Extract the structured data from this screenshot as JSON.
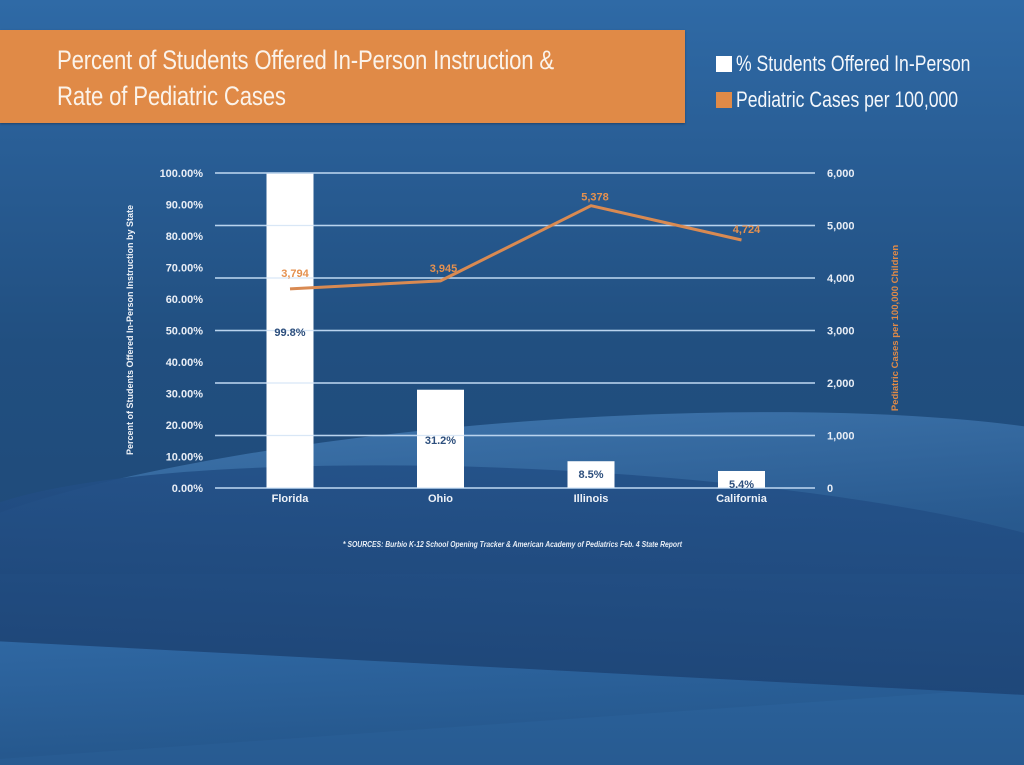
{
  "slide": {
    "title_lines": [
      "Percent of Students Offered In-Person Instruction &",
      "Rate of Pediatric Cases"
    ],
    "legend": [
      {
        "label": "% Students Offered In-Person",
        "color": "#ffffff"
      },
      {
        "label": "Pediatric Cases per 100,000",
        "color": "#e08a47"
      }
    ],
    "footnote": "* SOURCES: Burbio K-12 School Opening Tracker & American Academy of Pediatrics Feb. 4 State Report",
    "colors": {
      "accent_orange": "#e08a47",
      "bar_fill": "#ffffff",
      "bar_label": "#2d4f7d",
      "gridline": "#b9d3ee",
      "background": "#275a90"
    }
  },
  "chart_data": {
    "type": "bar+line",
    "title": "Percent of Students Offered In-Person Instruction & Rate of Pediatric Cases",
    "categories": [
      "Florida",
      "Ohio",
      "Illinois",
      "California"
    ],
    "series": [
      {
        "name": "% Students Offered In-Person",
        "type": "bar",
        "axis": "left",
        "values": [
          99.8,
          31.2,
          8.5,
          5.4
        ],
        "labels": [
          "99.8%",
          "31.2%",
          "8.5%",
          "5.4%"
        ]
      },
      {
        "name": "Pediatric Cases per 100,000",
        "type": "line",
        "axis": "right",
        "values": [
          3794,
          3945,
          5378,
          4724
        ],
        "labels": [
          "3,794",
          "3,945",
          "5,378",
          "4,724"
        ]
      }
    ],
    "ylabel": "Percent of Students Offered In-Person Instruction by State",
    "ylabel_right": "Pediatric Cases per 100,000 Children",
    "xlabel": "",
    "ylim": [
      0,
      100
    ],
    "ylim_right": [
      0,
      6000
    ],
    "left_ticks": [
      "0.00%",
      "10.00%",
      "20.00%",
      "30.00%",
      "40.00%",
      "50.00%",
      "60.00%",
      "70.00%",
      "80.00%",
      "90.00%",
      "100.00%"
    ],
    "left_tick_values": [
      0,
      10,
      20,
      30,
      40,
      50,
      60,
      70,
      80,
      90,
      100
    ],
    "right_ticks": [
      "0",
      "1,000",
      "2,000",
      "3,000",
      "4,000",
      "5,000",
      "6,000"
    ],
    "right_tick_values": [
      0,
      1000,
      2000,
      3000,
      4000,
      5000,
      6000
    ],
    "grid": true,
    "legend_position": "top-right"
  }
}
